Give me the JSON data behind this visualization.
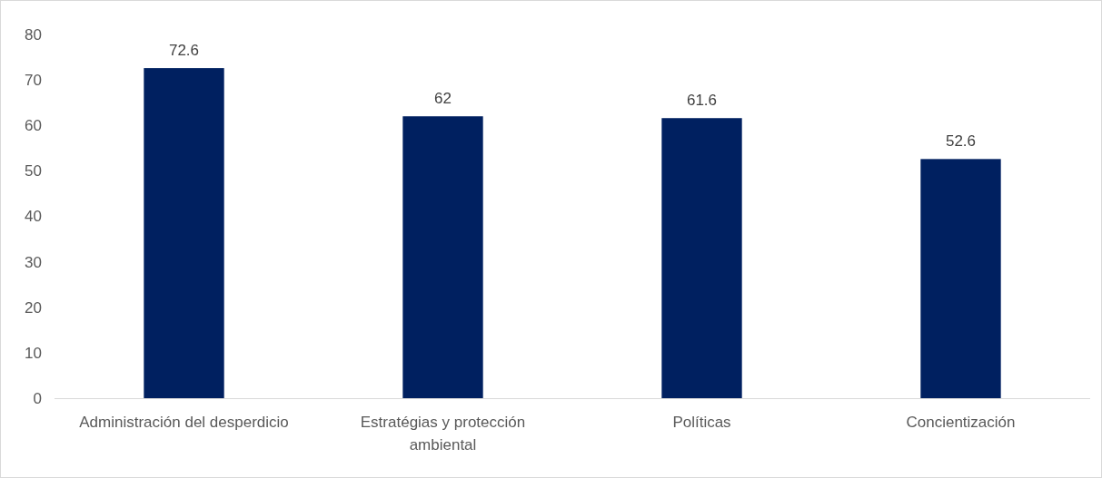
{
  "chart_data": {
    "type": "bar",
    "categories": [
      "Administración del desperdicio",
      "Estratégias y protección ambiental",
      "Políticas",
      "Concientización"
    ],
    "values": [
      72.6,
      62,
      61.6,
      52.6
    ],
    "color": "#002060",
    "ylim": [
      0,
      80
    ],
    "yticks": [
      0,
      10,
      20,
      30,
      40,
      50,
      60,
      70,
      80
    ],
    "grid": false,
    "data_labels": true
  }
}
